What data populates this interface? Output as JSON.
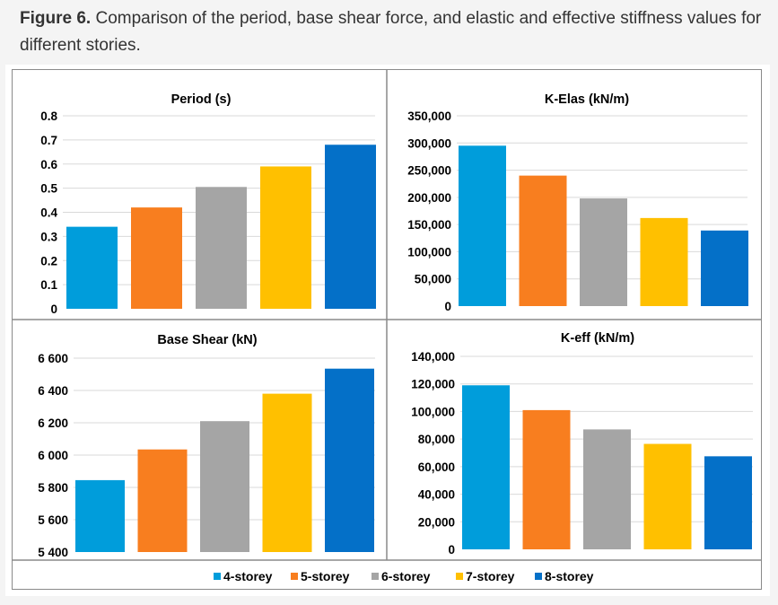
{
  "caption": {
    "label": "Figure 6.",
    "text": " Comparison of the period, base shear force, and elastic and effective stiffness values for different stories."
  },
  "colors": {
    "4-storey": "#009ddb",
    "5-storey": "#f87e1f",
    "6-storey": "#a5a5a5",
    "7-storey": "#ffc000",
    "8-storey": "#0470c8",
    "grid": "#d9d9d9",
    "axis_text": "#000000"
  },
  "legend": [
    "4-storey",
    "5-storey",
    "6-storey",
    "7-storey",
    "8-storey"
  ],
  "chart_data": [
    {
      "id": "period",
      "type": "bar",
      "title": "Period (s)",
      "categories": [
        "4-storey",
        "5-storey",
        "6-storey",
        "7-storey",
        "8-storey"
      ],
      "values": [
        0.34,
        0.42,
        0.505,
        0.59,
        0.68
      ],
      "ylim": [
        0,
        0.8
      ],
      "yticks": [
        0,
        0.1,
        0.2,
        0.3,
        0.4,
        0.5,
        0.6,
        0.7,
        0.8
      ],
      "ytick_labels": [
        "0",
        "0.1",
        "0.2",
        "0.3",
        "0.4",
        "0.5",
        "0.6",
        "0.7",
        "0.8"
      ],
      "xlabel": "",
      "ylabel": "",
      "grid": true
    },
    {
      "id": "kelas",
      "type": "bar",
      "title": "K-Elas (kN/m)",
      "categories": [
        "4-storey",
        "5-storey",
        "6-storey",
        "7-storey",
        "8-storey"
      ],
      "values": [
        295000,
        240000,
        198000,
        162000,
        139000
      ],
      "ylim": [
        0,
        350000
      ],
      "yticks": [
        0,
        50000,
        100000,
        150000,
        200000,
        250000,
        300000,
        350000
      ],
      "ytick_labels": [
        "0",
        "50,000",
        "100,000",
        "150,000",
        "200,000",
        "250,000",
        "300,000",
        "350,000"
      ],
      "xlabel": "",
      "ylabel": "",
      "grid": true
    },
    {
      "id": "baseshear",
      "type": "bar",
      "title": "Base Shear (kN)",
      "categories": [
        "4-storey",
        "5-storey",
        "6-storey",
        "7-storey",
        "8-storey"
      ],
      "values": [
        5845,
        6035,
        6210,
        6380,
        6535
      ],
      "ylim": [
        5400,
        6600
      ],
      "yticks": [
        5400,
        5600,
        5800,
        6000,
        6200,
        6400,
        6600
      ],
      "ytick_labels": [
        "5 400",
        "5 600",
        "5 800",
        "6 000",
        "6 200",
        "6 400",
        "6 600"
      ],
      "xlabel": "",
      "ylabel": "",
      "grid": true
    },
    {
      "id": "keff",
      "type": "bar",
      "title": "K-eff (kN/m)",
      "categories": [
        "4-storey",
        "5-storey",
        "6-storey",
        "7-storey",
        "8-storey"
      ],
      "values": [
        119000,
        101000,
        87000,
        76500,
        67500
      ],
      "ylim": [
        0,
        140000
      ],
      "yticks": [
        0,
        20000,
        40000,
        60000,
        80000,
        100000,
        120000,
        140000
      ],
      "ytick_labels": [
        "0",
        "20,000",
        "40,000",
        "60,000",
        "80,000",
        "100,000",
        "120,000",
        "140,000"
      ],
      "xlabel": "",
      "ylabel": "",
      "grid": true
    }
  ]
}
